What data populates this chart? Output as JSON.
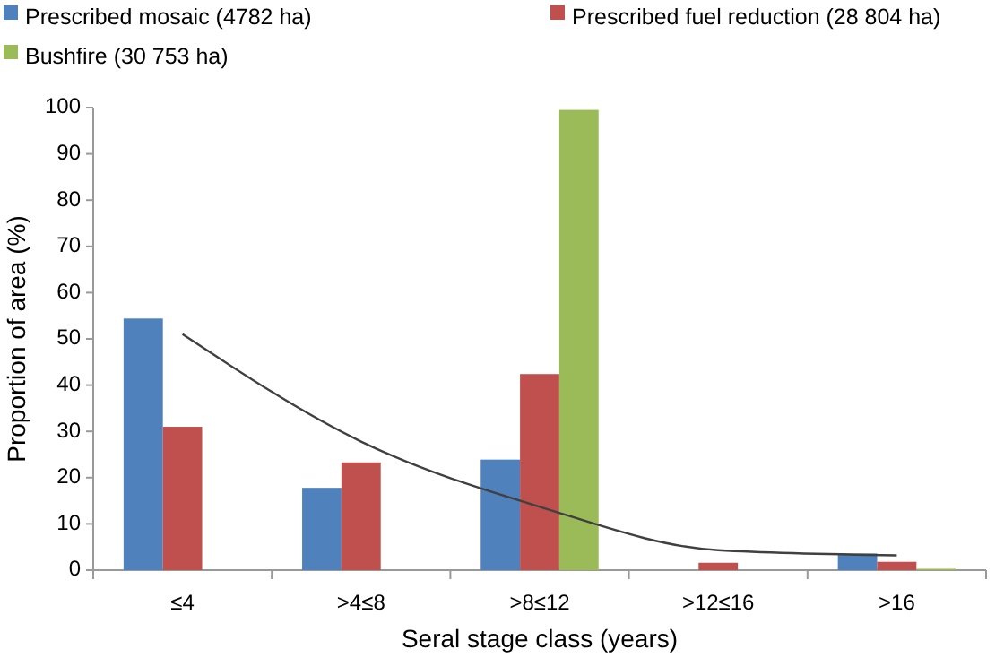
{
  "chart_data": {
    "type": "bar",
    "xlabel": "Seral stage class (years)",
    "ylabel": "Proportion of area (%)",
    "categories": [
      "≤4",
      ">4≤8",
      ">8≤12",
      ">12≤16",
      ">16"
    ],
    "series": [
      {
        "name": "Prescribed mosaic (4782 ha)",
        "color": "#4f81bd",
        "values": [
          54.4,
          17.8,
          23.9,
          0,
          3.6
        ]
      },
      {
        "name": "Prescribed fuel reduction (28 804 ha)",
        "color": "#c0504d",
        "values": [
          31,
          23.3,
          42.4,
          1.6,
          1.8
        ]
      },
      {
        "name": "Bushfire (30 753 ha)",
        "color": "#9bbb59",
        "values": [
          0,
          0,
          99.5,
          0,
          0.3
        ]
      },
      {
        "type": "line",
        "color": "#404040",
        "x": [
          "≤4",
          ">4≤8",
          ">8≤12",
          ">12≤16",
          ">16"
        ],
        "values": [
          51,
          27.8,
          13.7,
          4.3,
          3.2
        ]
      }
    ],
    "ylim": [
      0,
      100
    ],
    "yticks": [
      0,
      10,
      20,
      30,
      40,
      50,
      60,
      70,
      80,
      90,
      100
    ],
    "grid": false,
    "legend": "top"
  }
}
